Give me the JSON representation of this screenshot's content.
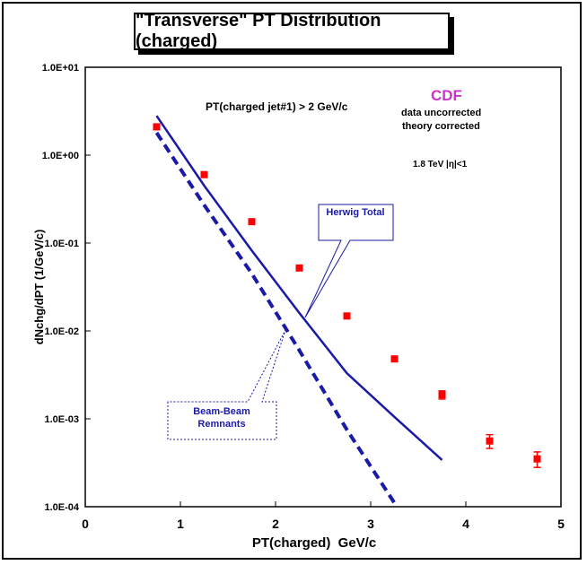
{
  "chart_data": {
    "type": "scatter",
    "title": "\"Transverse\" PT Distribution (charged)",
    "xlabel": "PT(charged)  GeV/c",
    "ylabel": "dNchg/dPT (1/GeV/c)",
    "xlim": [
      0,
      5
    ],
    "ylim": [
      0.0001,
      10
    ],
    "yscale": "log",
    "x_ticks": [
      "0",
      "1",
      "2",
      "3",
      "4",
      "5"
    ],
    "y_ticks": [
      "1.0E-04",
      "1.0E-03",
      "1.0E-02",
      "1.0E-01",
      "1.0E+00",
      "1.0E+01"
    ],
    "series": [
      {
        "name": "CDF data",
        "style": "points",
        "color": "#ff0000",
        "x": [
          0.75,
          1.25,
          1.75,
          2.25,
          2.75,
          3.25,
          3.75,
          4.25,
          4.75
        ],
        "y": [
          2.1,
          0.6,
          0.175,
          0.052,
          0.0148,
          0.0048,
          0.00188,
          0.00056,
          0.00035
        ],
        "yerr": [
          0,
          0,
          0,
          0,
          0,
          0,
          0.0002,
          0.0001,
          7e-05
        ]
      },
      {
        "name": "Herwig Total",
        "style": "solid",
        "color": "#1a1aa6",
        "x": [
          0.75,
          1.25,
          1.75,
          2.25,
          2.75,
          3.25,
          3.75
        ],
        "y": [
          2.8,
          0.45,
          0.082,
          0.016,
          0.0033,
          0.00105,
          0.00034
        ]
      },
      {
        "name": "Beam-Beam Remnants",
        "style": "dashed",
        "color": "#1a1aa6",
        "x": [
          0.75,
          1.25,
          1.75,
          2.25,
          2.75,
          3.25
        ],
        "y": [
          1.8,
          0.27,
          0.045,
          0.006,
          0.00075,
          0.00011
        ]
      }
    ],
    "annotations": {
      "cut": "PT(charged jet#1) > 2 GeV/c",
      "experiment": "CDF",
      "note1": "data uncorrected",
      "note2": "theory corrected",
      "energy": "1.8 TeV |η|<1",
      "herwig_label": "Herwig Total",
      "bbr_label_1": "Beam-Beam",
      "bbr_label_2": "Remnants"
    },
    "colors": {
      "experiment": "#cc33cc",
      "theory": "#1a1aa6",
      "data": "#ff0000"
    }
  }
}
